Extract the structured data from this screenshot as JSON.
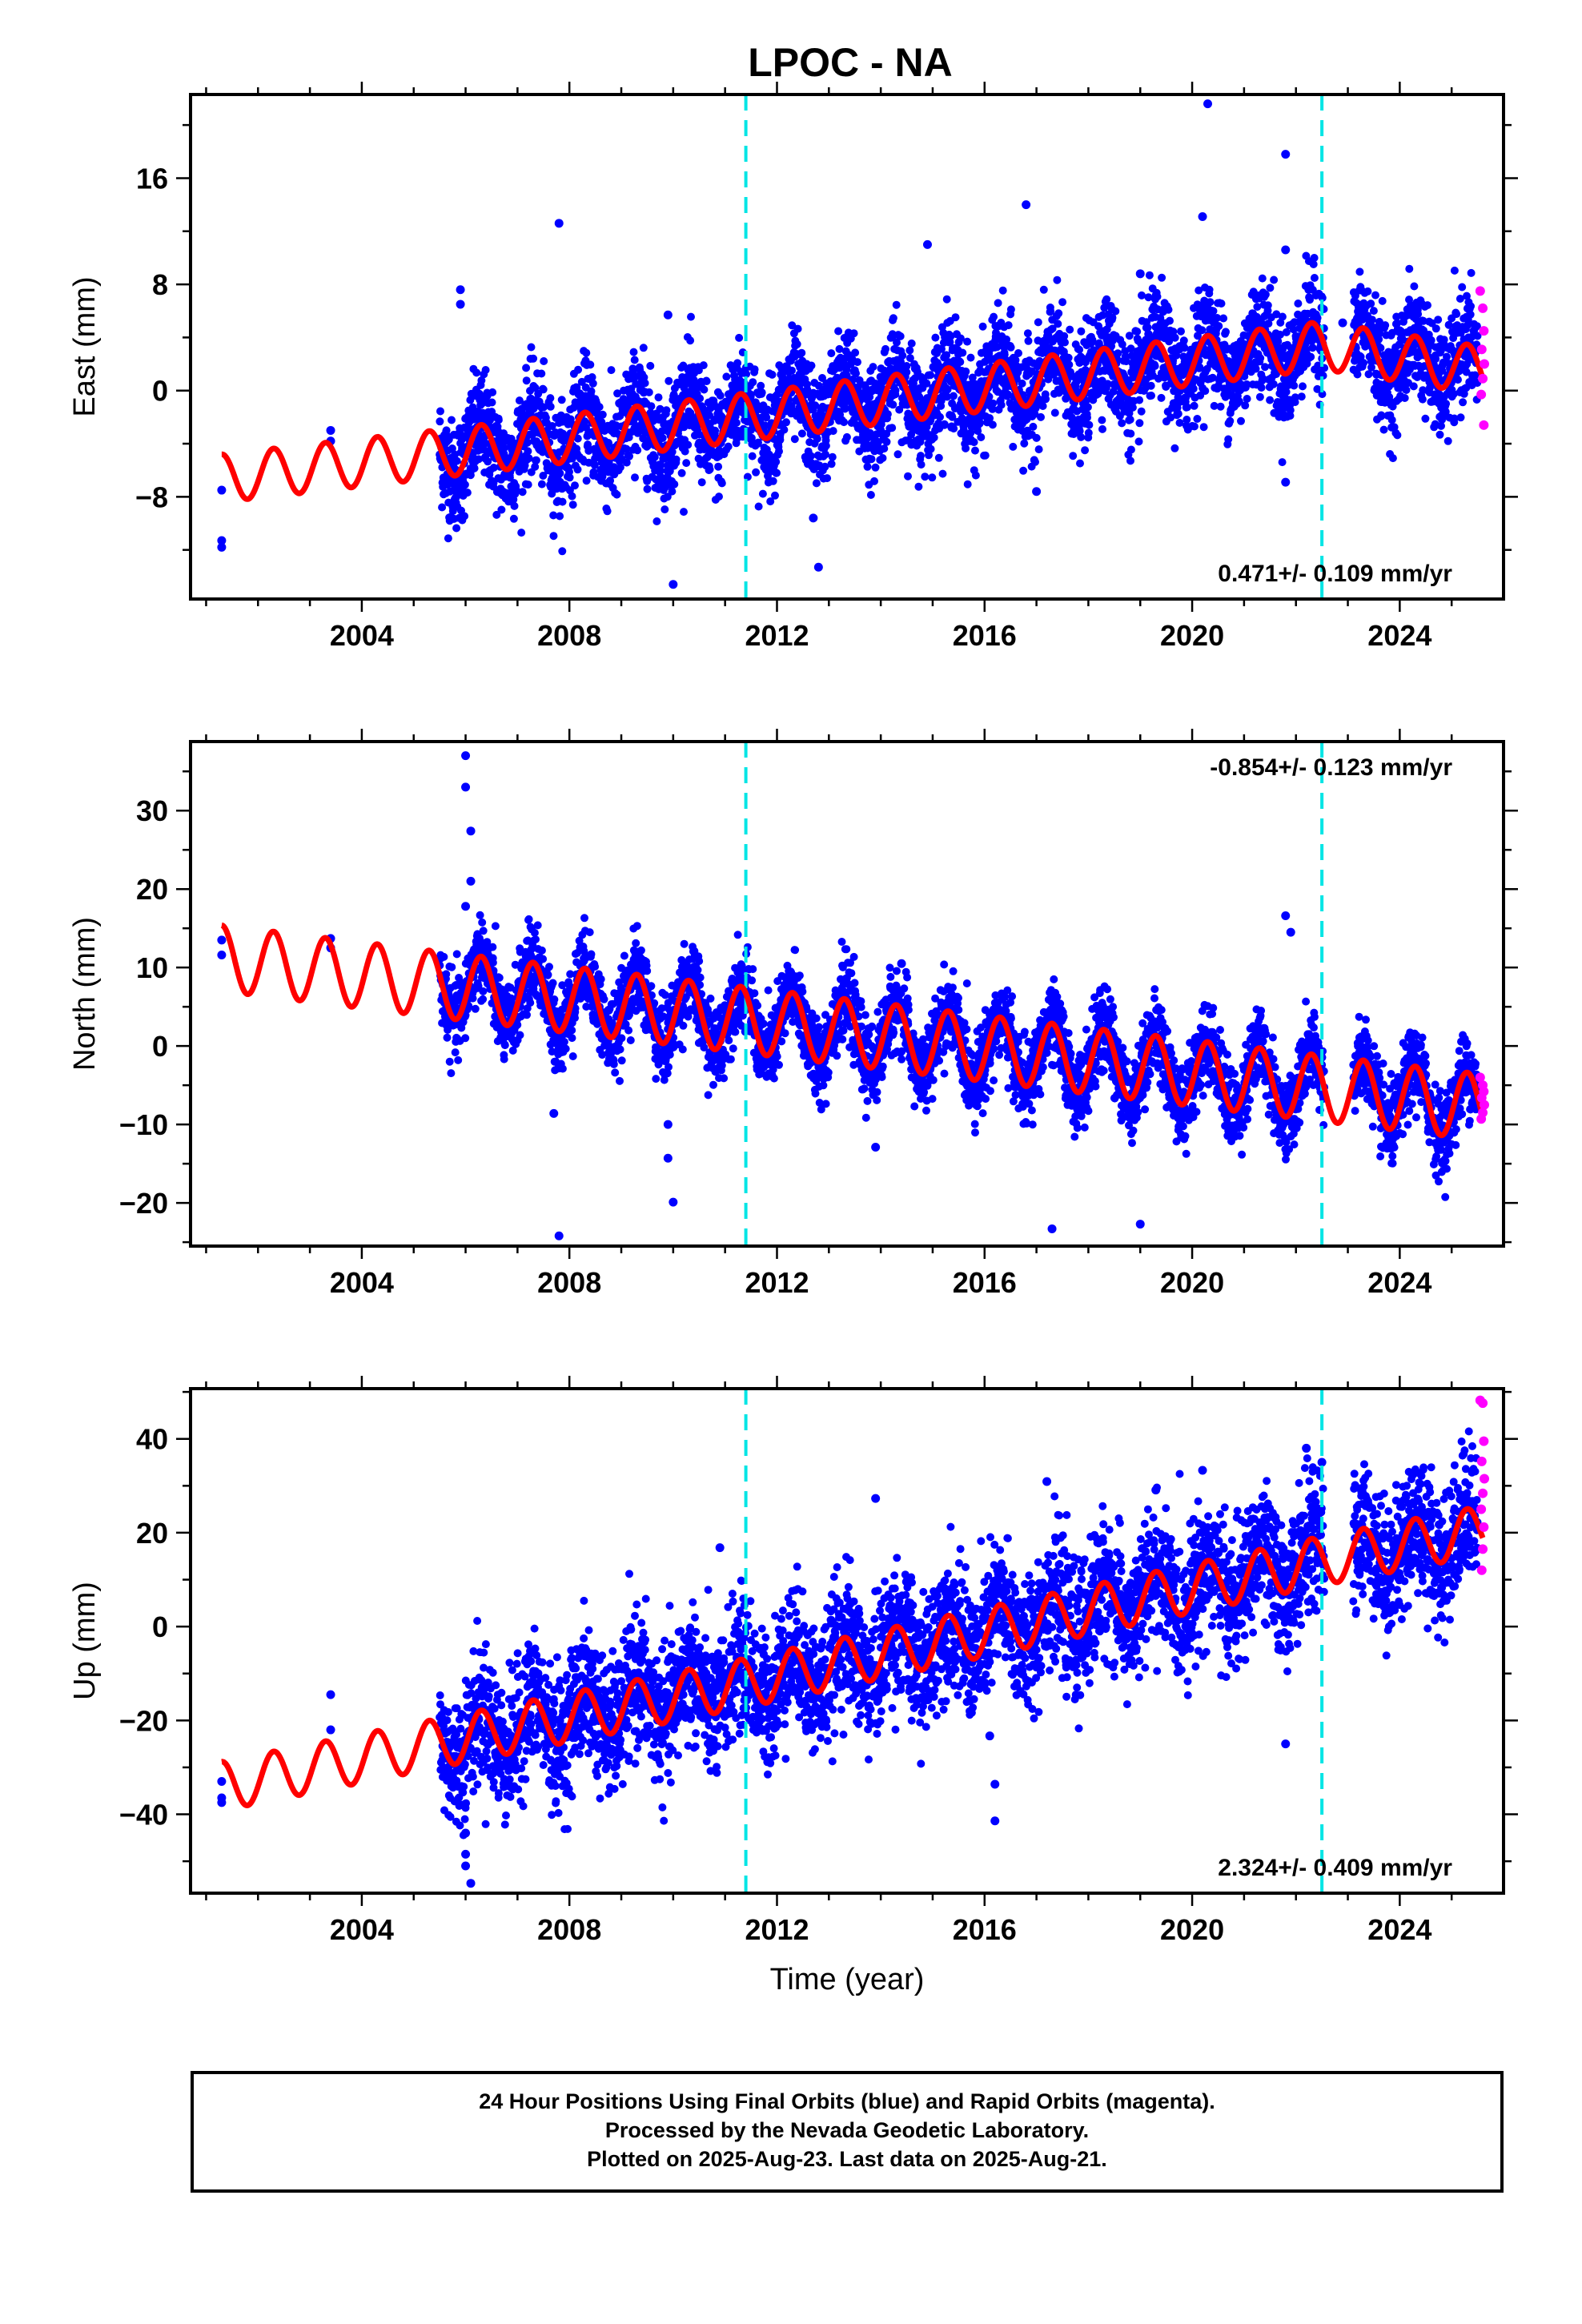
{
  "title": "LPOC - NA",
  "xlabel": "Time (year)",
  "footer": {
    "line1": "24 Hour Positions Using Final Orbits (blue) and Rapid Orbits (magenta).",
    "line2": "Processed by the Nevada Geodetic Laboratory.",
    "line3": "Plotted on 2025-Aug-23. Last data on 2025-Aug-21."
  },
  "colors": {
    "final_orbits": "#0000ff",
    "rapid_orbits": "#ff00ff",
    "model": "#ff0000",
    "events": "#00e5e5"
  },
  "chart_data": [
    {
      "type": "scatter",
      "component": "East",
      "ylabel": "East (mm)",
      "xlim": [
        2000.7,
        2026.0
      ],
      "ylim": [
        -15.7,
        22.3
      ],
      "xticks": [
        2004,
        2008,
        2012,
        2016,
        2020,
        2024
      ],
      "yticks": [
        -8,
        0,
        8,
        16
      ],
      "rate_label": "0.471+/- 0.109 mm/yr",
      "rate_position": "bottom-right",
      "event_lines": [
        2011.4,
        2022.5
      ],
      "model": {
        "linear": [
          [
            2001.3,
            -6.6
          ],
          [
            2005.4,
            -4.8
          ],
          [
            2011.4,
            -2.0
          ],
          [
            2022.5,
            3.4
          ],
          [
            2025.6,
            1.5
          ]
        ],
        "annual_amplitude": 1.8,
        "grid": false
      },
      "series": [
        {
          "name": "Final Orbits",
          "color": "#0000ff",
          "x_range": [
            2005.5,
            2025.5
          ],
          "scatter": 2.0,
          "sparse_points": [
            [
              2001.3,
              -7.5
            ],
            [
              2001.3,
              -11.3
            ],
            [
              2001.3,
              -11.8
            ],
            [
              2003.4,
              -3.8
            ],
            [
              2003.4,
              -3.0
            ]
          ],
          "outliers": [
            [
              2005.9,
              7.6
            ],
            [
              2005.9,
              6.5
            ],
            [
              2007.8,
              12.6
            ],
            [
              2009.9,
              5.7
            ],
            [
              2010.0,
              -14.6
            ],
            [
              2012.7,
              -9.6
            ],
            [
              2012.8,
              -13.3
            ],
            [
              2014.9,
              11.0
            ],
            [
              2016.8,
              14.0
            ],
            [
              2017.0,
              -7.6
            ],
            [
              2019.0,
              8.8
            ],
            [
              2020.2,
              13.1
            ],
            [
              2020.3,
              21.6
            ],
            [
              2021.8,
              17.8
            ],
            [
              2021.8,
              10.6
            ],
            [
              2021.8,
              -6.9
            ],
            [
              2022.9,
              5.1
            ]
          ]
        },
        {
          "name": "Rapid Orbits",
          "color": "#ff00ff",
          "x": [
            2025.55,
            2025.6,
            2025.62,
            2025.58,
            2025.63,
            2025.6,
            2025.57,
            2025.62
          ],
          "y": [
            7.5,
            6.2,
            4.5,
            3.1,
            2.0,
            0.9,
            -0.3,
            -2.6
          ]
        }
      ]
    },
    {
      "type": "scatter",
      "component": "North",
      "ylabel": "North (mm)",
      "xlim": [
        2000.7,
        2026.0
      ],
      "ylim": [
        -25.5,
        38.8
      ],
      "xticks": [
        2004,
        2008,
        2012,
        2016,
        2020,
        2024
      ],
      "yticks": [
        -20,
        -10,
        0,
        10,
        20,
        30
      ],
      "rate_label": "-0.854+/- 0.123 mm/yr",
      "rate_position": "top-right",
      "event_lines": [
        2011.4,
        2022.5
      ],
      "model": {
        "linear": [
          [
            2001.3,
            11.2
          ],
          [
            2005.4,
            7.9
          ],
          [
            2011.4,
            3.3
          ],
          [
            2022.5,
            -5.4
          ],
          [
            2025.6,
            -7.8
          ]
        ],
        "annual_amplitude": 4.2,
        "grid": false
      },
      "series": [
        {
          "name": "Final Orbits",
          "color": "#0000ff",
          "x_range": [
            2005.5,
            2025.5
          ],
          "scatter": 2.5,
          "sparse_points": [
            [
              2001.3,
              13.5
            ],
            [
              2001.3,
              11.6
            ],
            [
              2003.4,
              13.7
            ],
            [
              2003.4,
              12.5
            ]
          ],
          "outliers": [
            [
              2006.0,
              37.0
            ],
            [
              2006.0,
              33.0
            ],
            [
              2006.1,
              27.4
            ],
            [
              2006.1,
              21.0
            ],
            [
              2006.0,
              17.8
            ],
            [
              2007.7,
              -8.6
            ],
            [
              2007.8,
              -24.2
            ],
            [
              2009.9,
              -10.0
            ],
            [
              2009.9,
              -14.3
            ],
            [
              2010.0,
              -19.9
            ],
            [
              2013.9,
              -12.9
            ],
            [
              2014.4,
              10.5
            ],
            [
              2017.3,
              -23.3
            ],
            [
              2019.0,
              -22.7
            ],
            [
              2021.8,
              16.6
            ],
            [
              2021.9,
              14.5
            ]
          ]
        },
        {
          "name": "Rapid Orbits",
          "color": "#ff00ff",
          "x": [
            2025.55,
            2025.6,
            2025.62,
            2025.58,
            2025.63,
            2025.6,
            2025.57
          ],
          "y": [
            -4.0,
            -5.0,
            -5.8,
            -6.6,
            -7.5,
            -8.5,
            -9.3
          ]
        }
      ]
    },
    {
      "type": "scatter",
      "component": "Up",
      "ylabel": "Up (mm)",
      "xlim": [
        2000.7,
        2026.0
      ],
      "ylim": [
        -56.8,
        50.7
      ],
      "xticks": [
        2004,
        2008,
        2012,
        2016,
        2020,
        2024
      ],
      "yticks": [
        -40,
        -20,
        0,
        20,
        40
      ],
      "rate_label": "2.324+/- 0.409 mm/yr",
      "rate_position": "bottom-right",
      "event_lines": [
        2011.4,
        2022.5
      ],
      "model": {
        "linear": [
          [
            2001.3,
            -34.0
          ],
          [
            2005.4,
            -25.0
          ],
          [
            2011.4,
            -12.0
          ],
          [
            2022.5,
            14.0
          ],
          [
            2025.6,
            20.5
          ]
        ],
        "annual_amplitude": 5.2,
        "grid": false
      },
      "series": [
        {
          "name": "Final Orbits",
          "color": "#0000ff",
          "x_range": [
            2005.5,
            2025.5
          ],
          "scatter": 7.0,
          "sparse_points": [
            [
              2001.3,
              -33.0
            ],
            [
              2001.3,
              -36.5
            ],
            [
              2001.3,
              -37.5
            ],
            [
              2003.4,
              -14.5
            ],
            [
              2003.4,
              -22.0
            ]
          ],
          "outliers": [
            [
              2006.0,
              -44.0
            ],
            [
              2006.0,
              -48.5
            ],
            [
              2006.1,
              -54.7
            ],
            [
              2006.0,
              -51.0
            ],
            [
              2010.9,
              16.8
            ],
            [
              2013.9,
              27.3
            ],
            [
              2016.1,
              -23.3
            ],
            [
              2016.2,
              -33.6
            ],
            [
              2016.2,
              -41.4
            ],
            [
              2017.2,
              30.9
            ],
            [
              2019.3,
              29.1
            ],
            [
              2020.2,
              33.3
            ],
            [
              2021.8,
              -25.0
            ],
            [
              2022.2,
              38.0
            ],
            [
              2022.5,
              35.0
            ]
          ]
        },
        {
          "name": "Rapid Orbits",
          "color": "#ff00ff",
          "x": [
            2025.55,
            2025.6,
            2025.62,
            2025.58,
            2025.63,
            2025.6,
            2025.57,
            2025.62,
            2025.6,
            2025.58
          ],
          "y": [
            48.2,
            47.6,
            39.5,
            35.2,
            31.5,
            28.4,
            25.0,
            21.2,
            16.5,
            12.0
          ]
        }
      ]
    }
  ]
}
